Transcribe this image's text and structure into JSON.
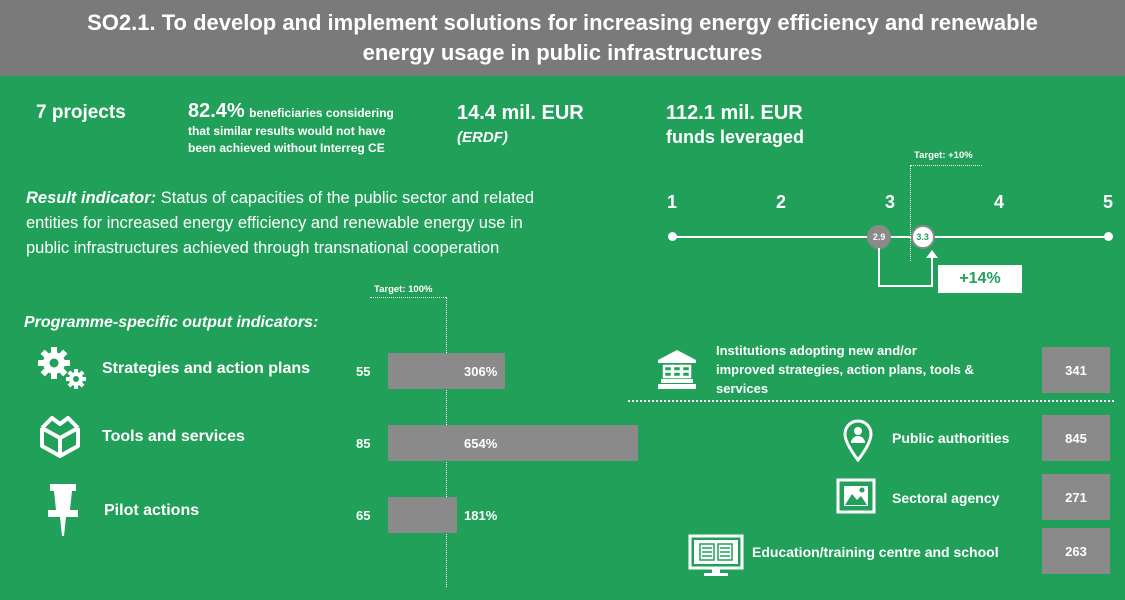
{
  "header": {
    "line1": "SO2.1. To develop and implement solutions for increasing energy efficiency and renewable",
    "line2": "energy usage in public infrastructures"
  },
  "stats": {
    "projects": "7 projects",
    "beneficiaries_pct": "82.4%",
    "beneficiaries_text1": "beneficiaries considering",
    "beneficiaries_text2": "that similar results would not have",
    "beneficiaries_text3": "been achieved without Interreg CE",
    "erdf_amount": "14.4 mil. EUR",
    "erdf_label": "(ERDF)",
    "leveraged_amount": "112.1 mil. EUR",
    "leveraged_label": "funds leveraged"
  },
  "result_indicator": {
    "label": "Result indicator:",
    "line1": " Status of capacities of the public sector and related",
    "line2": "entities for increased energy efficiency and renewable energy use in",
    "line3": "public infrastructures achieved through transnational cooperation"
  },
  "scale": {
    "ticks": [
      "1",
      "2",
      "3",
      "4",
      "5"
    ],
    "baseline": "2.9",
    "achieved": "3.3",
    "baseline_value": 2.9,
    "achieved_value": 3.3,
    "target_label": "Target: +10%",
    "change": "+14%"
  },
  "output_indicators": {
    "heading": "Programme-specific output indicators:",
    "target_label": "Target: 100%",
    "items": [
      {
        "label": "Strategies and action plans",
        "value": "55",
        "pct": "306%",
        "pct_value": 306,
        "icon": "gears-icon"
      },
      {
        "label": "Tools and services",
        "value": "85",
        "pct": "654%",
        "pct_value": 654,
        "icon": "box-icon"
      },
      {
        "label": "Pilot actions",
        "value": "65",
        "pct": "181%",
        "pct_value": 181,
        "icon": "pin-icon"
      }
    ]
  },
  "institutions": {
    "label": "Institutions adopting new and/or improved strategies, action plans, tools & services",
    "label_line1": "Institutions adopting new and/or",
    "label_line2": "improved strategies, action plans, tools &",
    "label_line3": "services",
    "value": "341",
    "breakdown": [
      {
        "label": "Public authorities",
        "value": "845",
        "icon": "location-person-icon"
      },
      {
        "label": "Sectoral agency",
        "value": "271",
        "icon": "image-icon"
      },
      {
        "label": "Education/training centre and school",
        "value": "263",
        "icon": "monitor-icon"
      }
    ]
  },
  "colors": {
    "background": "#21a05a",
    "header": "#7a7a7a",
    "bar": "#8a8a8a"
  }
}
